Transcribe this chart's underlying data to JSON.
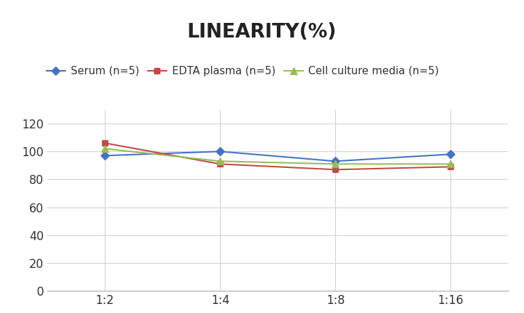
{
  "title": "LINEARITY(%)",
  "x_labels": [
    "1:2",
    "1:4",
    "1:8",
    "1:16"
  ],
  "x_positions": [
    0,
    1,
    2,
    3
  ],
  "series": [
    {
      "label": "Serum (n=5)",
      "values": [
        97,
        100,
        93,
        98
      ],
      "color": "#4472C4",
      "marker": "D",
      "markersize": 6
    },
    {
      "label": "EDTA plasma (n=5)",
      "values": [
        106,
        91,
        87,
        89
      ],
      "color": "#BE4B48",
      "marker": "s",
      "markersize": 6
    },
    {
      "label": "Cell culture media (n=5)",
      "values": [
        102,
        93,
        91,
        91
      ],
      "color": "#9BBB59",
      "marker": "^",
      "markersize": 7
    }
  ],
  "ylim": [
    0,
    130
  ],
  "yticks": [
    0,
    20,
    40,
    60,
    80,
    100,
    120
  ],
  "title_fontsize": 20,
  "legend_fontsize": 11,
  "tick_fontsize": 12,
  "background_color": "#ffffff",
  "grid_color": "#d3d3d3"
}
